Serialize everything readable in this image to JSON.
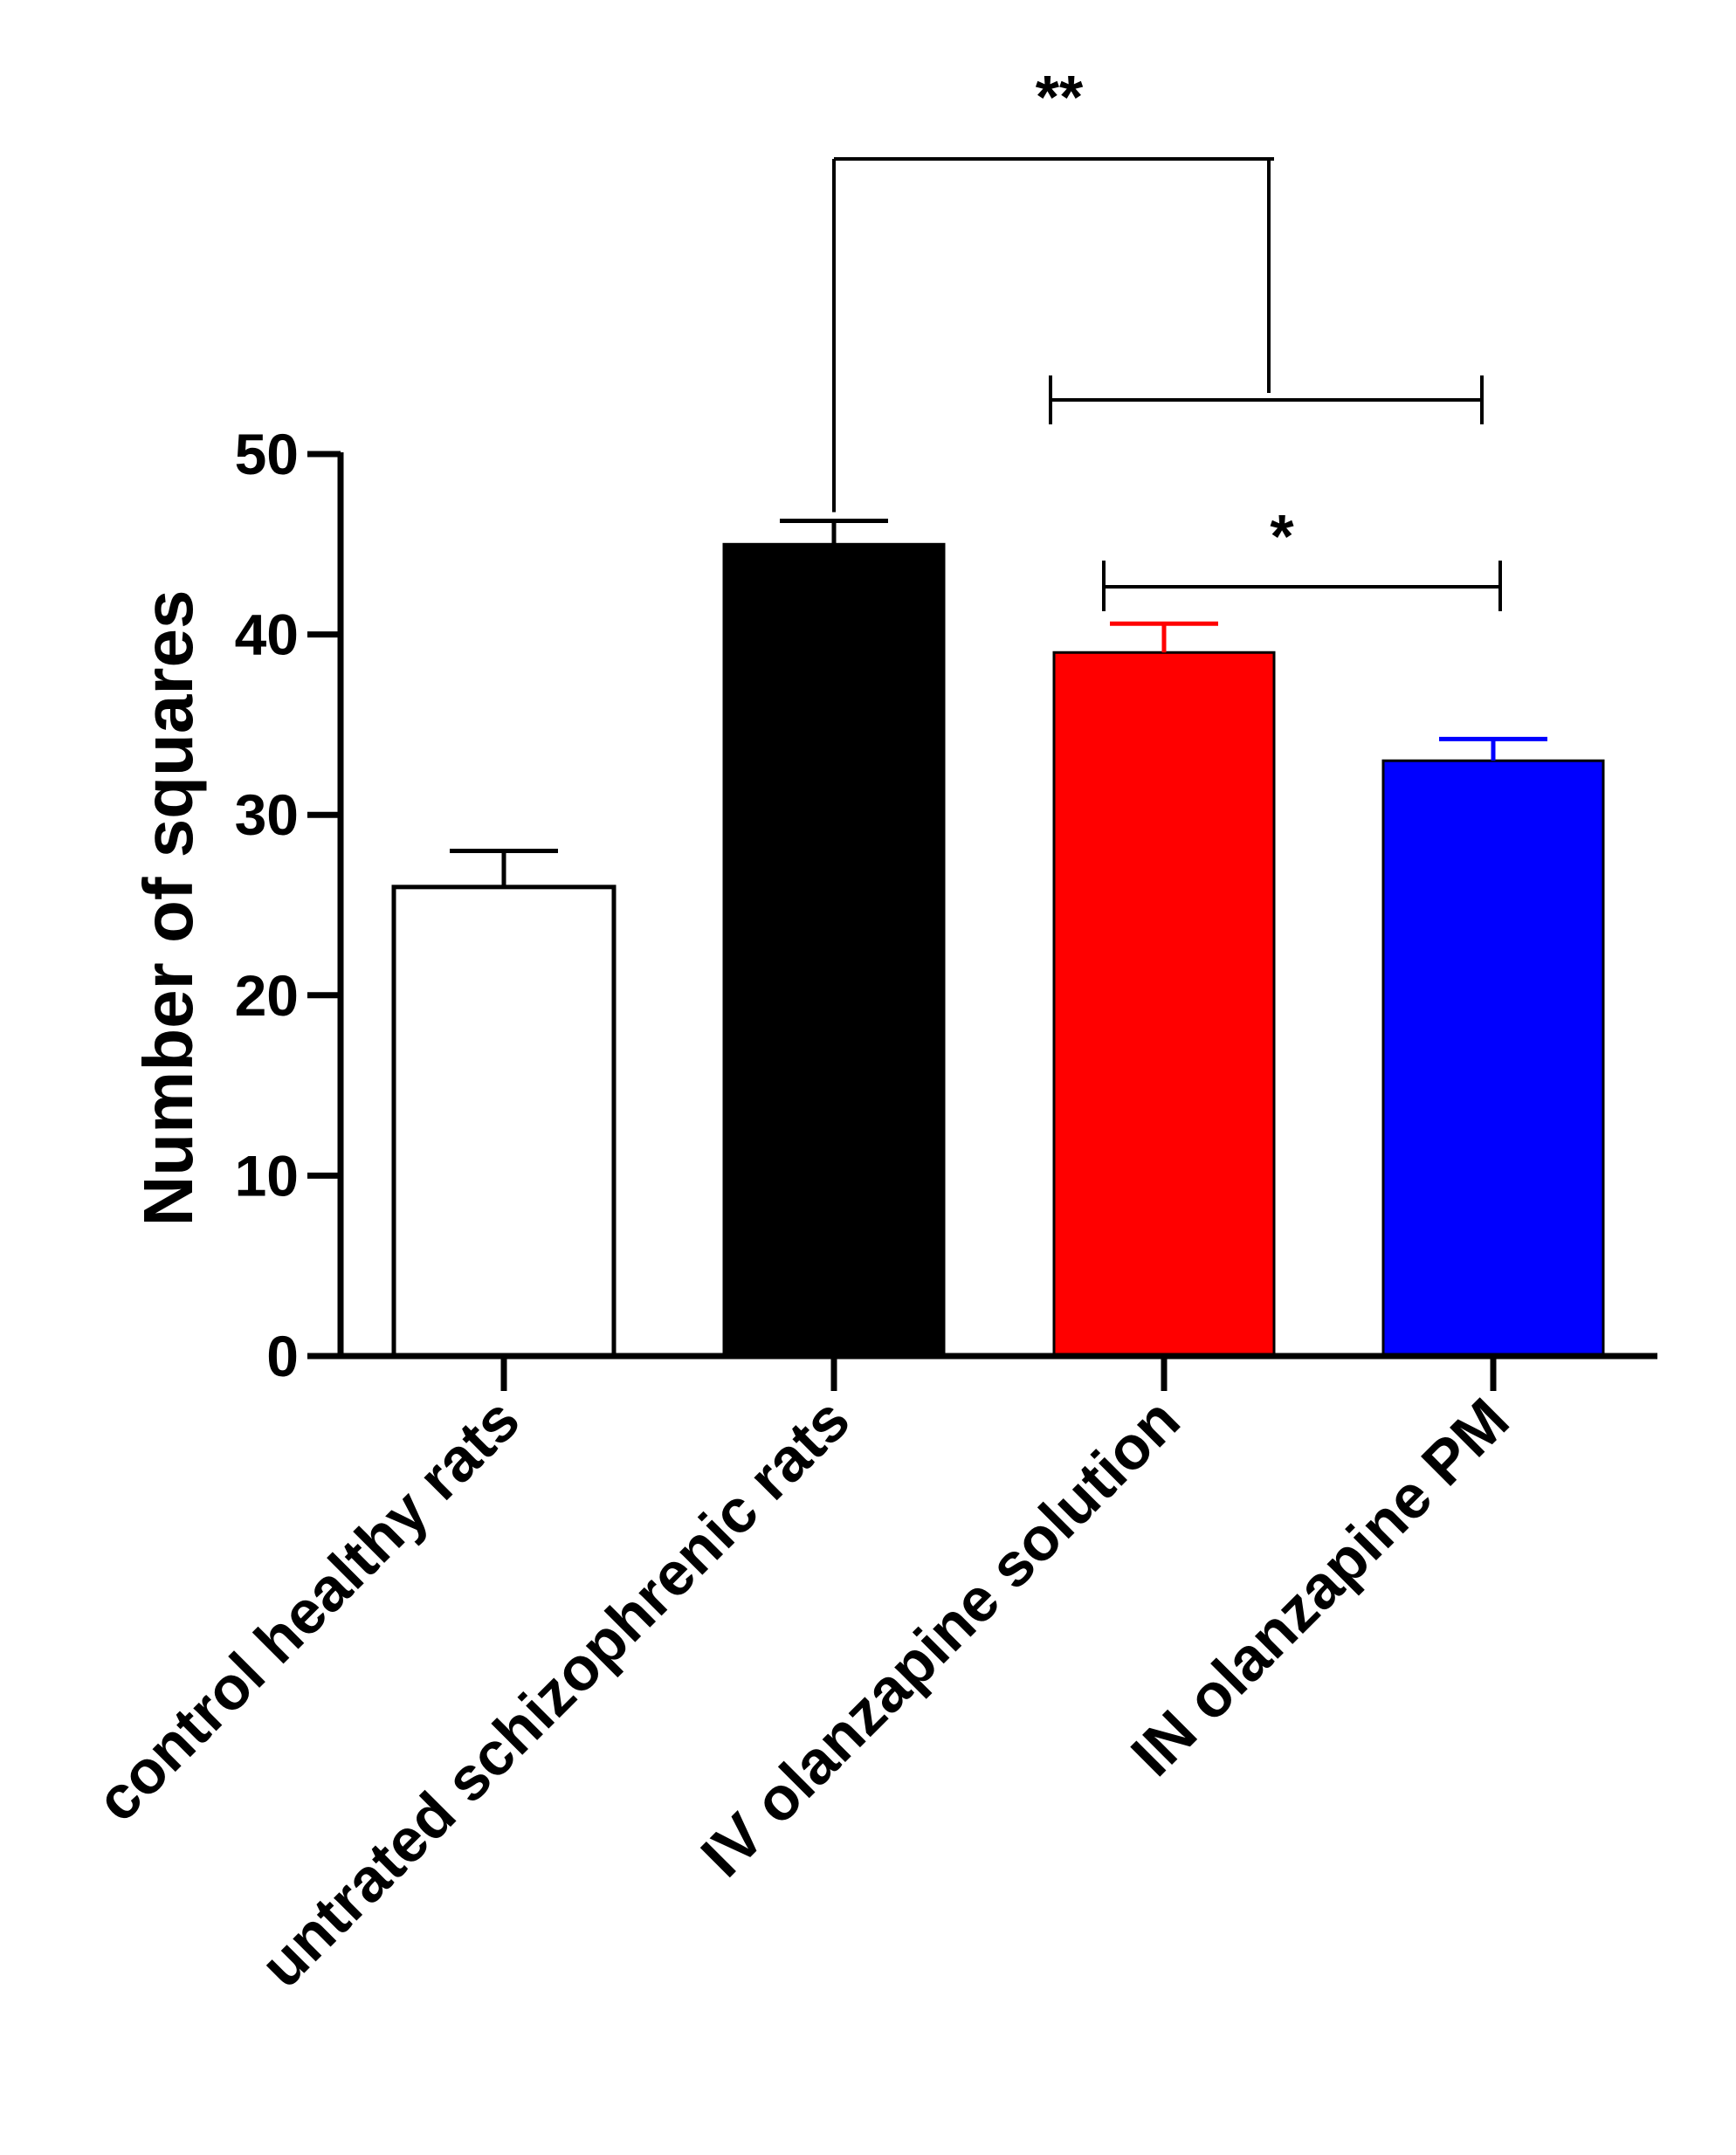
{
  "chart_data": {
    "type": "bar",
    "title": "",
    "xlabel": "",
    "ylabel": "Number of squares",
    "ylim": [
      0,
      50
    ],
    "yticks": [
      0,
      10,
      20,
      30,
      40,
      50
    ],
    "categories": [
      "control healthy rats",
      "untrated schizophrenic rats",
      "IV olanzapine solution",
      "IN olanzapine PM"
    ],
    "values": [
      26,
      45,
      39,
      33
    ],
    "errors": [
      2.0,
      1.3,
      1.6,
      1.2
    ],
    "bar_colors": [
      "#ffffff",
      "#000000",
      "#ff0000",
      "#0000ff"
    ],
    "error_colors": [
      "#000000",
      "#000000",
      "#ff0000",
      "#0000ff"
    ],
    "significance": [
      {
        "label": "**",
        "from": "untrated schizophrenic rats",
        "to": [
          "IV olanzapine solution",
          "IN olanzapine PM"
        ]
      },
      {
        "label": "*",
        "from": "IV olanzapine solution",
        "to": "IN olanzapine PM"
      }
    ]
  }
}
